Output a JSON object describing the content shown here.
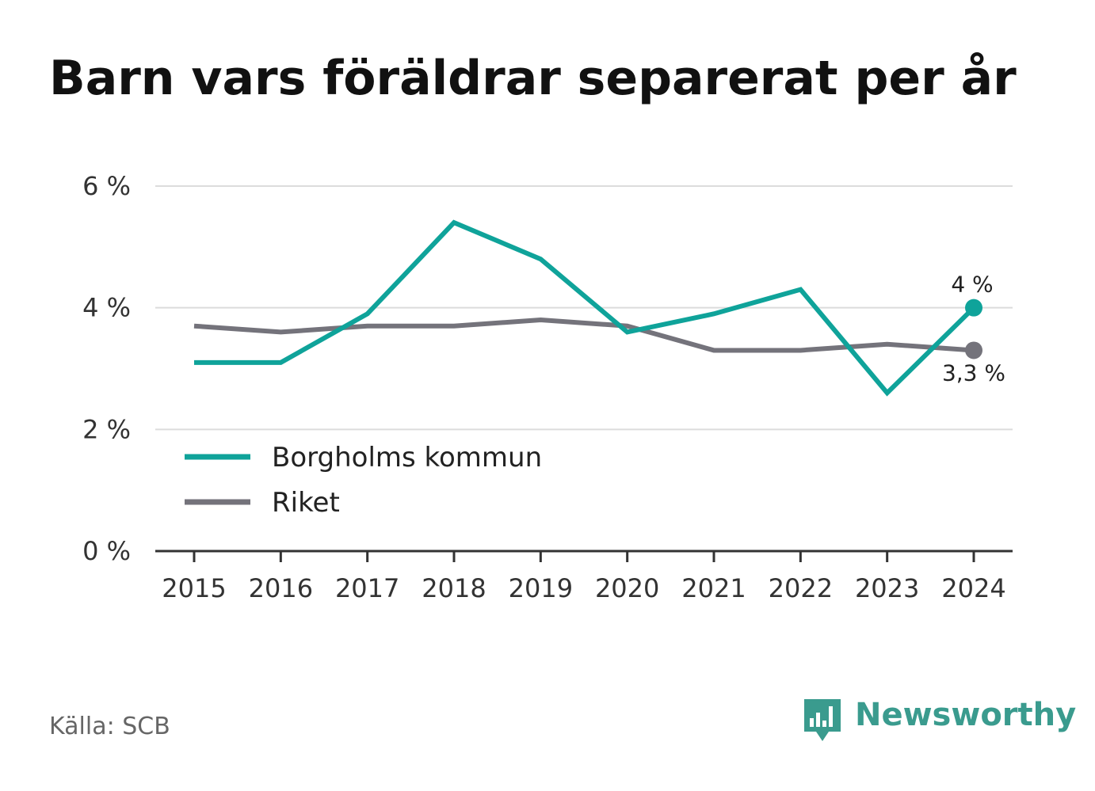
{
  "title": "Barn vars föräldrar separerat per år",
  "source": "Källa: SCB",
  "brand": {
    "name": "Newsworthy",
    "icon": "newsworthy-logo-icon",
    "color": "#3a9b8e"
  },
  "chart_data": {
    "type": "line",
    "title": "Barn vars föräldrar separerat per år",
    "xlabel": "",
    "ylabel": "",
    "x": [
      "2015",
      "2016",
      "2017",
      "2018",
      "2019",
      "2020",
      "2021",
      "2022",
      "2023",
      "2024"
    ],
    "ylim": [
      0,
      6
    ],
    "yticks": [
      0,
      2,
      4,
      6
    ],
    "ytick_labels": [
      "0 %",
      "2 %",
      "4 %",
      "6 %"
    ],
    "grid": true,
    "legend_position": "lower-left",
    "series": [
      {
        "name": "Borgholms kommun",
        "color": "#0fa39a",
        "values": [
          3.1,
          3.1,
          3.9,
          5.4,
          4.8,
          3.6,
          3.9,
          4.3,
          2.6,
          4.0
        ],
        "end_label": "4 %"
      },
      {
        "name": "Riket",
        "color": "#74737b",
        "values": [
          3.7,
          3.6,
          3.7,
          3.7,
          3.8,
          3.7,
          3.3,
          3.3,
          3.4,
          3.3
        ],
        "end_label": "3,3 %"
      }
    ]
  }
}
